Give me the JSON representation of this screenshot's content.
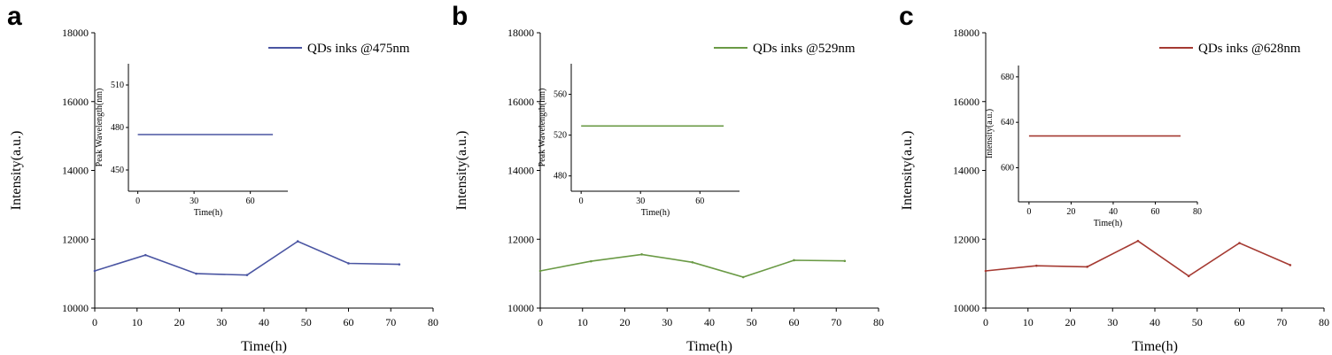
{
  "chart_data": [
    {
      "type": "line",
      "panel_label": "a",
      "color": "#4a55a2",
      "xlabel": "Time(h)",
      "ylabel": "Intensity(a.u.)",
      "xlim": [
        0,
        80
      ],
      "ylim": [
        10000,
        18000
      ],
      "xticks": [
        "0",
        "10",
        "20",
        "30",
        "40",
        "50",
        "60",
        "70",
        "80"
      ],
      "yticks": [
        "10000",
        "12000",
        "14000",
        "16000",
        "18000"
      ],
      "legend_position": "top-right",
      "series": [
        {
          "name": "QDs inks @475nm",
          "x": [
            0,
            12,
            24,
            36,
            48,
            60,
            72
          ],
          "y": [
            11080,
            11540,
            11000,
            10960,
            11940,
            11300,
            11270
          ]
        }
      ],
      "inset": {
        "xlabel": "Time(h)",
        "ylabel": "Peak Wavelength(nm)",
        "xlim": [
          -5,
          80
        ],
        "ylim": [
          435,
          525
        ],
        "xticks": [
          "0",
          "30",
          "60"
        ],
        "yticks": [
          "450",
          "480",
          "510"
        ],
        "series": [
          {
            "x": [
              0,
              72
            ],
            "y": [
              475,
              475
            ]
          }
        ]
      }
    },
    {
      "type": "line",
      "panel_label": "b",
      "color": "#6a9a45",
      "xlabel": "Time(h)",
      "ylabel": "Intensity(a.u.)",
      "xlim": [
        0,
        80
      ],
      "ylim": [
        10000,
        18000
      ],
      "xticks": [
        "0",
        "10",
        "20",
        "30",
        "40",
        "50",
        "60",
        "70",
        "80"
      ],
      "yticks": [
        "10000",
        "12000",
        "14000",
        "16000",
        "18000"
      ],
      "legend_position": "top-right",
      "series": [
        {
          "name": "QDs inks @529nm",
          "x": [
            0,
            12,
            24,
            36,
            48,
            60,
            72
          ],
          "y": [
            11080,
            11360,
            11560,
            11330,
            10900,
            11390,
            11370
          ]
        }
      ],
      "inset": {
        "xlabel": "Time(h)",
        "ylabel": "Peak Wavelength(nm)",
        "xlim": [
          -5,
          80
        ],
        "ylim": [
          465,
          590
        ],
        "xticks": [
          "0",
          "30",
          "60"
        ],
        "yticks": [
          "480",
          "520",
          "560"
        ],
        "series": [
          {
            "x": [
              0,
              72
            ],
            "y": [
              529,
              529
            ]
          }
        ]
      }
    },
    {
      "type": "line",
      "panel_label": "c",
      "color": "#a53a32",
      "xlabel": "Time(h)",
      "ylabel": "Intensity(a.u.)",
      "xlim": [
        0,
        80
      ],
      "ylim": [
        10000,
        18000
      ],
      "xticks": [
        "0",
        "10",
        "20",
        "30",
        "40",
        "50",
        "60",
        "70",
        "80"
      ],
      "yticks": [
        "10000",
        "12000",
        "14000",
        "16000",
        "18000"
      ],
      "legend_position": "top-right",
      "series": [
        {
          "name": "QDs inks @628nm",
          "x": [
            0,
            12,
            24,
            36,
            48,
            60,
            72
          ],
          "y": [
            11080,
            11230,
            11200,
            11950,
            10930,
            11890,
            11250
          ]
        }
      ],
      "inset": {
        "xlabel": "Time(h)",
        "ylabel": "Intensity(a.u.)",
        "xlim": [
          -5,
          80
        ],
        "ylim": [
          570,
          690
        ],
        "xticks": [
          "0",
          "20",
          "40",
          "60",
          "80"
        ],
        "yticks": [
          "600",
          "640",
          "680"
        ],
        "series": [
          {
            "x": [
              0,
              72
            ],
            "y": [
              628,
              628
            ]
          }
        ]
      }
    }
  ]
}
